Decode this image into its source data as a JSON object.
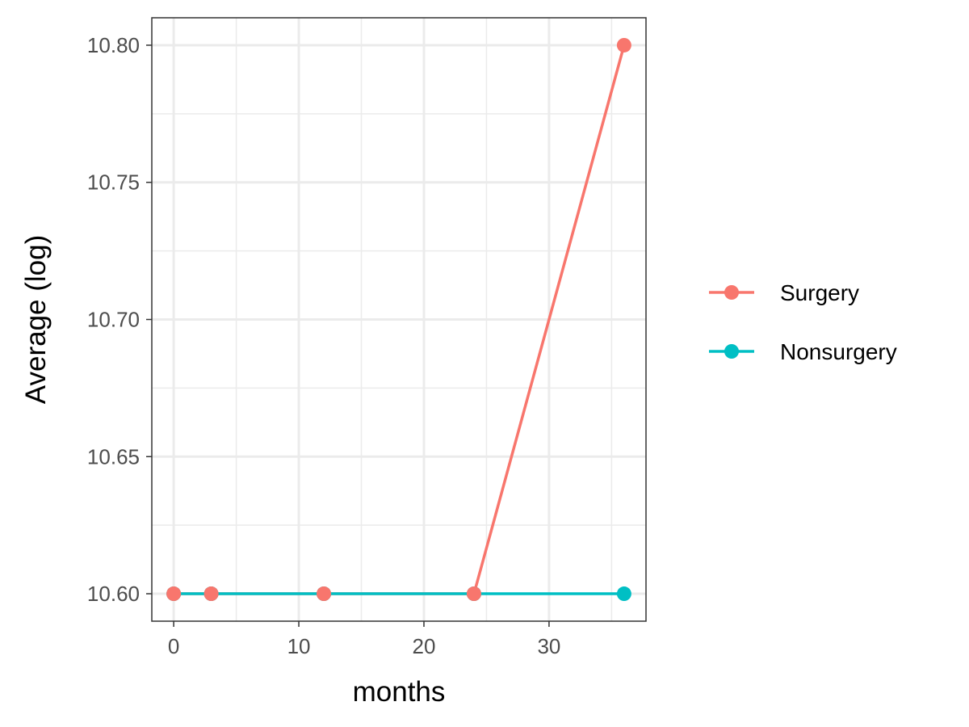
{
  "chart_data": {
    "type": "line",
    "title": "",
    "xlabel": "months",
    "ylabel": "Average (log)",
    "xlim": [
      -1.75,
      37.75
    ],
    "ylim": [
      10.59,
      10.81
    ],
    "x_ticks": [
      0,
      10,
      20,
      30
    ],
    "x_tick_labels": [
      "0",
      "10",
      "20",
      "30"
    ],
    "x_minor_ticks": [
      5,
      15,
      25,
      35
    ],
    "y_ticks": [
      10.6,
      10.65,
      10.7,
      10.75,
      10.8
    ],
    "y_tick_labels": [
      "10.60",
      "10.65",
      "10.70",
      "10.75",
      "10.80"
    ],
    "y_minor_ticks": [
      10.625,
      10.675,
      10.725,
      10.775
    ],
    "grid": true,
    "legend_position": "right",
    "series": [
      {
        "name": "Surgery",
        "color": "#F8766D",
        "x": [
          0,
          3,
          12,
          24,
          36
        ],
        "y": [
          10.6,
          10.6,
          10.6,
          10.6,
          10.8
        ]
      },
      {
        "name": "Nonsurgery",
        "color": "#00BFC4",
        "x": [
          0,
          3,
          12,
          24,
          36
        ],
        "y": [
          10.6,
          10.6,
          10.6,
          10.6,
          10.6
        ]
      }
    ],
    "panel_background": "#FFFFFF",
    "grid_color": "#EBEBEB",
    "axis_border_color": "#333333"
  }
}
